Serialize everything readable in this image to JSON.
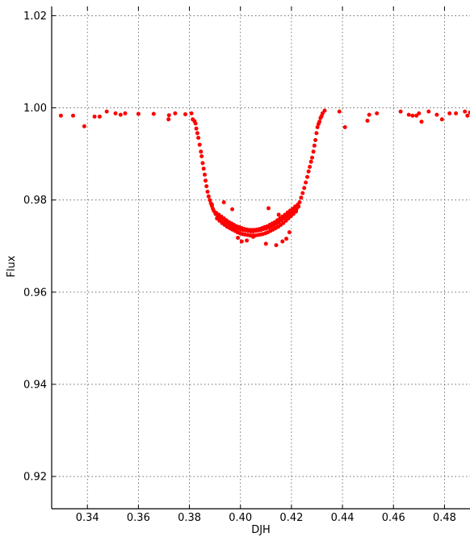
{
  "chart_data": {
    "type": "scatter",
    "title": "",
    "xlabel": "DJH",
    "ylabel": "Flux",
    "xlim": [
      0.326,
      0.49
    ],
    "ylim": [
      0.913,
      1.022
    ],
    "x_ticks": [
      0.34,
      0.36,
      0.38,
      0.4,
      0.42,
      0.44,
      0.46,
      0.48
    ],
    "x_tick_labels": [
      "0.34",
      "0.36",
      "0.38",
      "0.40",
      "0.42",
      "0.44",
      "0.46",
      "0.48"
    ],
    "y_ticks": [
      0.92,
      0.94,
      0.96,
      0.98,
      1.0,
      1.02
    ],
    "y_tick_labels": [
      "0.92",
      "0.94",
      "0.96",
      "0.98",
      "1.00",
      "1.02"
    ],
    "grid": true,
    "grid_style": "dotted",
    "legend": false,
    "marker_color": "#ff0000",
    "series": [
      {
        "x": [
          0.3296,
          0.3344,
          0.3388,
          0.3428,
          0.3448,
          0.3476,
          0.351,
          0.353,
          0.3548,
          0.36,
          0.366,
          0.3718,
          0.3744,
          0.372,
          0.3784,
          0.3808,
          0.3813,
          0.382,
          0.3824,
          0.3827,
          0.3831,
          0.3835,
          0.384,
          0.3845,
          0.3848,
          0.3852,
          0.3856,
          0.386,
          0.3863,
          0.3867,
          0.3871,
          0.3875,
          0.388,
          0.3884,
          0.3888,
          0.3892,
          0.3896,
          0.3888,
          0.3902,
          0.391,
          0.392,
          0.393,
          0.394,
          0.395,
          0.396,
          0.397,
          0.398,
          0.399,
          0.4,
          0.401,
          0.402,
          0.403,
          0.404,
          0.405,
          0.406,
          0.407,
          0.408,
          0.409,
          0.41,
          0.411,
          0.412,
          0.413,
          0.414,
          0.415,
          0.416,
          0.417,
          0.418,
          0.419,
          0.42,
          0.421,
          0.422,
          0.4228,
          0.3905,
          0.3915,
          0.3925,
          0.3935,
          0.3945,
          0.3955,
          0.3965,
          0.3975,
          0.3985,
          0.3995,
          0.4005,
          0.4015,
          0.4025,
          0.4035,
          0.4045,
          0.4055,
          0.4065,
          0.4075,
          0.4085,
          0.4095,
          0.4105,
          0.4115,
          0.4125,
          0.4135,
          0.4145,
          0.4155,
          0.4165,
          0.4175,
          0.4185,
          0.4195,
          0.4205,
          0.4215,
          0.4225,
          0.3908,
          0.3918,
          0.3928,
          0.3938,
          0.3948,
          0.3958,
          0.3968,
          0.3978,
          0.3988,
          0.3998,
          0.4008,
          0.4018,
          0.4028,
          0.4038,
          0.4048,
          0.4058,
          0.4068,
          0.4078,
          0.4088,
          0.4098,
          0.4108,
          0.4118,
          0.4128,
          0.4138,
          0.4148,
          0.4158,
          0.4168,
          0.4178,
          0.4188,
          0.4198,
          0.4208,
          0.4218,
          0.3935,
          0.399,
          0.4005,
          0.4025,
          0.41,
          0.411,
          0.414,
          0.4165,
          0.418,
          0.4192,
          0.3968,
          0.405,
          0.415,
          0.4232,
          0.4238,
          0.4244,
          0.425,
          0.4256,
          0.4262,
          0.4267,
          0.4272,
          0.4277,
          0.4281,
          0.4286,
          0.429,
          0.4294,
          0.4298,
          0.4302,
          0.4306,
          0.431,
          0.4314,
          0.4318,
          0.4322,
          0.433,
          0.4388,
          0.441,
          0.4498,
          0.4505,
          0.4535,
          0.4628,
          0.4675,
          0.469,
          0.471,
          0.4738,
          0.477,
          0.479,
          0.482,
          0.4845,
          0.488,
          0.49,
          0.489,
          0.47,
          0.466
        ],
        "y": [
          0.9983,
          0.9983,
          0.996,
          0.9981,
          0.9981,
          0.9992,
          0.9988,
          0.9985,
          0.9988,
          0.9987,
          0.9987,
          0.9975,
          0.9988,
          0.9984,
          0.9986,
          0.9988,
          0.9975,
          0.9971,
          0.9966,
          0.9955,
          0.9945,
          0.9935,
          0.992,
          0.9905,
          0.9895,
          0.988,
          0.9868,
          0.9855,
          0.9842,
          0.983,
          0.9818,
          0.9808,
          0.98,
          0.9793,
          0.9787,
          0.9781,
          0.9776,
          0.979,
          0.977,
          0.9765,
          0.9762,
          0.9758,
          0.9752,
          0.975,
          0.9745,
          0.9742,
          0.974,
          0.9738,
          0.9736,
          0.9735,
          0.9734,
          0.9733,
          0.9732,
          0.9732,
          0.9733,
          0.9734,
          0.9735,
          0.9737,
          0.9738,
          0.974,
          0.9742,
          0.9745,
          0.9748,
          0.9752,
          0.9756,
          0.976,
          0.9764,
          0.9768,
          0.9772,
          0.9776,
          0.9781,
          0.9786,
          0.9772,
          0.9768,
          0.9764,
          0.976,
          0.9756,
          0.9752,
          0.9749,
          0.9746,
          0.9743,
          0.9741,
          0.9739,
          0.9737,
          0.9736,
          0.9735,
          0.9735,
          0.9735,
          0.9736,
          0.9737,
          0.9739,
          0.9741,
          0.9743,
          0.9746,
          0.9749,
          0.9752,
          0.9756,
          0.976,
          0.9764,
          0.9768,
          0.9773,
          0.9777,
          0.9781,
          0.9786,
          0.979,
          0.976,
          0.9755,
          0.975,
          0.9746,
          0.9742,
          0.9739,
          0.9736,
          0.9733,
          0.973,
          0.9728,
          0.9726,
          0.9725,
          0.9724,
          0.9723,
          0.9723,
          0.9723,
          0.9724,
          0.9725,
          0.9726,
          0.9728,
          0.973,
          0.9733,
          0.9736,
          0.9739,
          0.9742,
          0.9746,
          0.975,
          0.9755,
          0.976,
          0.9765,
          0.977,
          0.9775,
          0.9795,
          0.9718,
          0.971,
          0.9712,
          0.9705,
          0.9782,
          0.9702,
          0.971,
          0.9716,
          0.973,
          0.978,
          0.972,
          0.9768,
          0.9795,
          0.9805,
          0.9815,
          0.9826,
          0.9838,
          0.985,
          0.9862,
          0.9872,
          0.9883,
          0.9892,
          0.9905,
          0.9918,
          0.993,
          0.9945,
          0.9958,
          0.9965,
          0.997,
          0.9978,
          0.9982,
          0.9988,
          0.9994,
          0.9992,
          0.9958,
          0.9972,
          0.9985,
          0.9988,
          0.9992,
          0.9983,
          0.9983,
          0.997,
          0.9992,
          0.9985,
          0.9975,
          0.9988,
          0.9988,
          0.9992,
          0.999,
          0.9983,
          0.9988,
          0.9985
        ]
      }
    ]
  }
}
